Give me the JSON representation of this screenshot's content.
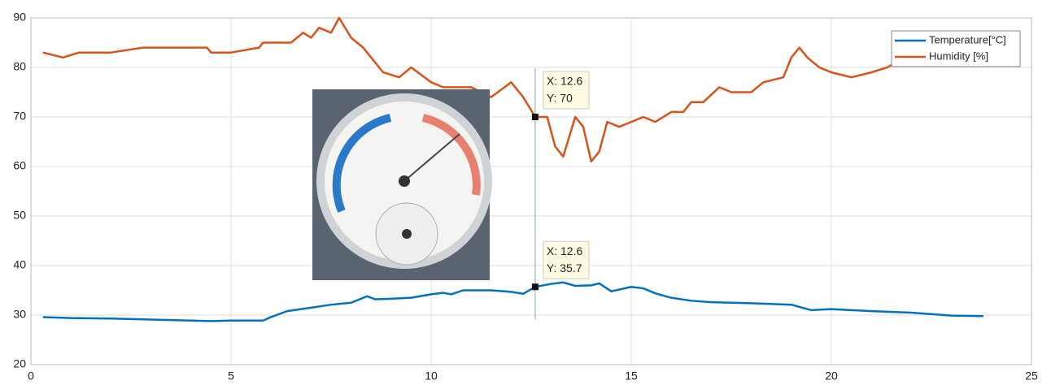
{
  "chart_data": {
    "type": "line",
    "xlim": [
      0,
      25
    ],
    "xticks": [
      0,
      5,
      10,
      15,
      20,
      25
    ],
    "ylim": [
      20,
      90
    ],
    "yticks": [
      20,
      30,
      40,
      50,
      60,
      70,
      80,
      90
    ],
    "grid": true,
    "legend": "top-right",
    "series": [
      {
        "name": "Temperature[°C]",
        "color": "#0072bd",
        "x": [
          0.3,
          1,
          2,
          3,
          4,
          4.5,
          5,
          5.8,
          6,
          6.4,
          7,
          7.5,
          8,
          8.4,
          8.6,
          9,
          9.5,
          10,
          10.3,
          10.5,
          10.8,
          11.5,
          12,
          12.3,
          12.6,
          13,
          13.3,
          13.6,
          14,
          14.2,
          14.5,
          15,
          15.3,
          15.6,
          16,
          16.5,
          17,
          18,
          19,
          19.5,
          20,
          21,
          22,
          23,
          23.8
        ],
        "values": [
          29.6,
          29.4,
          29.3,
          29.1,
          28.9,
          28.8,
          28.9,
          28.9,
          29.6,
          30.8,
          31.5,
          32.1,
          32.5,
          33.8,
          33.2,
          33.3,
          33.5,
          34.2,
          34.5,
          34.2,
          35,
          35,
          34.7,
          34.3,
          35.7,
          36.3,
          36.6,
          35.9,
          36,
          36.4,
          34.8,
          35.7,
          35.4,
          34.4,
          33.5,
          32.9,
          32.6,
          32.4,
          32.1,
          31,
          31.2,
          30.8,
          30.5,
          29.9,
          29.8
        ]
      },
      {
        "name": "Humidity [%]",
        "color": "#d95319",
        "x": [
          0.3,
          0.8,
          1.2,
          2,
          2.8,
          3.5,
          4.4,
          4.5,
          5,
          5.7,
          5.8,
          6.5,
          6.8,
          7,
          7.2,
          7.5,
          7.7,
          8,
          8.3,
          8.5,
          8.8,
          9.2,
          9.5,
          10,
          10.3,
          11,
          11.5,
          12,
          12.3,
          12.6,
          12.9,
          13.1,
          13.3,
          13.6,
          13.8,
          14,
          14.2,
          14.4,
          14.7,
          15,
          15.3,
          15.6,
          16,
          16.3,
          16.5,
          16.8,
          17.2,
          17.5,
          18,
          18.3,
          18.8,
          19,
          19.2,
          19.4,
          19.7,
          20,
          20.5,
          21,
          21.4,
          21.8
        ],
        "values": [
          83,
          82,
          83,
          83,
          84,
          84,
          84,
          83,
          83,
          84,
          85,
          85,
          87,
          86,
          88,
          87,
          90,
          86,
          84,
          82,
          79,
          78,
          80,
          77,
          76,
          76,
          74,
          77,
          74,
          70,
          70,
          64,
          62,
          70,
          68,
          61,
          63,
          69,
          68,
          69,
          70,
          69,
          71,
          71,
          73,
          73,
          76,
          75,
          75,
          77,
          78,
          82,
          84,
          82,
          80,
          79,
          78,
          79,
          80,
          82
        ]
      }
    ],
    "datatips": [
      {
        "x": 12.6,
        "y": 70,
        "labels": [
          "X: 12.6",
          "Y: 70"
        ]
      },
      {
        "x": 12.6,
        "y": 35.7,
        "labels": [
          "X: 12.6",
          "Y: 35.7"
        ]
      }
    ]
  }
}
